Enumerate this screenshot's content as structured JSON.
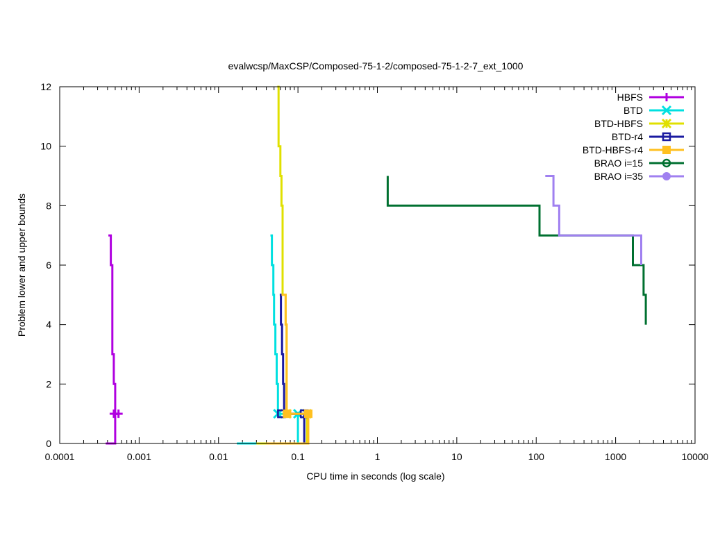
{
  "chart_data": {
    "type": "line",
    "title": "evalwcsp/MaxCSP/Composed-75-1-2/composed-75-1-2-7_ext_1000",
    "xlabel": "CPU time in seconds (log scale)",
    "ylabel": "Problem lower and upper bounds",
    "xscale": "log",
    "xlim": [
      0.0001,
      10000
    ],
    "ylim": [
      0,
      12
    ],
    "x_ticks": [
      {
        "value": 0.0001,
        "label": "0.0001"
      },
      {
        "value": 0.001,
        "label": "0.001"
      },
      {
        "value": 0.01,
        "label": "0.01"
      },
      {
        "value": 0.1,
        "label": "0.1"
      },
      {
        "value": 1,
        "label": "1"
      },
      {
        "value": 10,
        "label": "10"
      },
      {
        "value": 100,
        "label": "100"
      },
      {
        "value": 1000,
        "label": "1000"
      },
      {
        "value": 10000,
        "label": "10000"
      }
    ],
    "y_ticks": [
      {
        "value": 0,
        "label": "0"
      },
      {
        "value": 2,
        "label": "2"
      },
      {
        "value": 4,
        "label": "4"
      },
      {
        "value": 6,
        "label": "6"
      },
      {
        "value": 8,
        "label": "8"
      },
      {
        "value": 10,
        "label": "10"
      },
      {
        "value": 12,
        "label": "12"
      }
    ],
    "legend_position": "top-right",
    "series": [
      {
        "name": "HBFS",
        "color": "#b000e0",
        "marker": "plus",
        "upper": [
          [
            0.00041,
            7
          ],
          [
            0.00044,
            7
          ],
          [
            0.00044,
            6
          ],
          [
            0.00046,
            6
          ],
          [
            0.00046,
            3
          ],
          [
            0.00048,
            3
          ],
          [
            0.00048,
            2
          ],
          [
            0.0005,
            2
          ],
          [
            0.0005,
            1
          ],
          [
            0.00055,
            1
          ]
        ],
        "lower": [
          [
            0.00038,
            0
          ],
          [
            0.0005,
            0
          ],
          [
            0.0005,
            1
          ],
          [
            0.00055,
            1
          ]
        ],
        "markers": [
          [
            0.00048,
            1
          ],
          [
            0.00055,
            1
          ]
        ]
      },
      {
        "name": "BTD",
        "color": "#00e0e0",
        "marker": "x",
        "upper": [
          [
            0.045,
            7
          ],
          [
            0.047,
            7
          ],
          [
            0.047,
            6
          ],
          [
            0.049,
            6
          ],
          [
            0.049,
            5
          ],
          [
            0.05,
            5
          ],
          [
            0.05,
            4
          ],
          [
            0.052,
            4
          ],
          [
            0.052,
            3
          ],
          [
            0.054,
            3
          ],
          [
            0.054,
            2
          ],
          [
            0.056,
            2
          ],
          [
            0.056,
            1
          ],
          [
            0.1,
            1
          ]
        ],
        "lower": [
          [
            0.017,
            0
          ],
          [
            0.1,
            0
          ],
          [
            0.1,
            1
          ]
        ],
        "markers": [
          [
            0.056,
            1
          ],
          [
            0.1,
            1
          ]
        ]
      },
      {
        "name": "BTD-HBFS",
        "color": "#e0e000",
        "marker": "star",
        "upper": [
          [
            0.055,
            12
          ],
          [
            0.057,
            12
          ],
          [
            0.057,
            10
          ],
          [
            0.06,
            10
          ],
          [
            0.06,
            9
          ],
          [
            0.062,
            9
          ],
          [
            0.062,
            8
          ],
          [
            0.064,
            8
          ],
          [
            0.064,
            5
          ],
          [
            0.07,
            5
          ],
          [
            0.07,
            4
          ],
          [
            0.072,
            4
          ],
          [
            0.072,
            1
          ],
          [
            0.13,
            1
          ]
        ],
        "lower": [
          [
            0.03,
            0
          ],
          [
            0.13,
            0
          ],
          [
            0.13,
            1
          ]
        ],
        "markers": [
          [
            0.072,
            1
          ],
          [
            0.13,
            1
          ]
        ]
      },
      {
        "name": "BTD-r4",
        "color": "#1a1aa0",
        "marker": "square-open",
        "upper": [
          [
            0.059,
            5
          ],
          [
            0.061,
            5
          ],
          [
            0.061,
            4
          ],
          [
            0.063,
            4
          ],
          [
            0.063,
            3
          ],
          [
            0.065,
            3
          ],
          [
            0.065,
            2
          ],
          [
            0.067,
            2
          ],
          [
            0.067,
            1
          ],
          [
            0.12,
            1
          ]
        ],
        "lower": [
          [
            0.06,
            0
          ],
          [
            0.12,
            0
          ],
          [
            0.12,
            1
          ]
        ],
        "markers": [
          [
            0.062,
            1
          ],
          [
            0.12,
            1
          ]
        ]
      },
      {
        "name": "BTD-HBFS-r4",
        "color": "#ffc020",
        "marker": "square-filled",
        "upper": [
          [
            0.062,
            5
          ],
          [
            0.07,
            5
          ],
          [
            0.07,
            4
          ],
          [
            0.072,
            4
          ],
          [
            0.072,
            1
          ],
          [
            0.135,
            1
          ]
        ],
        "lower": [
          [
            0.04,
            0
          ],
          [
            0.135,
            0
          ],
          [
            0.135,
            1
          ]
        ],
        "markers": [
          [
            0.073,
            1
          ],
          [
            0.135,
            1
          ]
        ]
      },
      {
        "name": "BRAO i=15",
        "color": "#007030",
        "marker": "circle-open",
        "upper": [
          [
            1.35,
            9
          ],
          [
            1.35,
            8
          ],
          [
            110,
            8
          ],
          [
            110,
            7
          ],
          [
            1650,
            7
          ],
          [
            1650,
            6
          ],
          [
            2250,
            6
          ],
          [
            2250,
            5
          ],
          [
            2400,
            5
          ],
          [
            2400,
            4
          ]
        ],
        "lower": [],
        "markers": []
      },
      {
        "name": "BRAO i=35",
        "color": "#a080f0",
        "marker": "circle-filled",
        "upper": [
          [
            130,
            9
          ],
          [
            165,
            9
          ],
          [
            165,
            8
          ],
          [
            195,
            8
          ],
          [
            195,
            7
          ],
          [
            2100,
            7
          ],
          [
            2100,
            6
          ]
        ],
        "lower": [],
        "markers": []
      }
    ]
  }
}
